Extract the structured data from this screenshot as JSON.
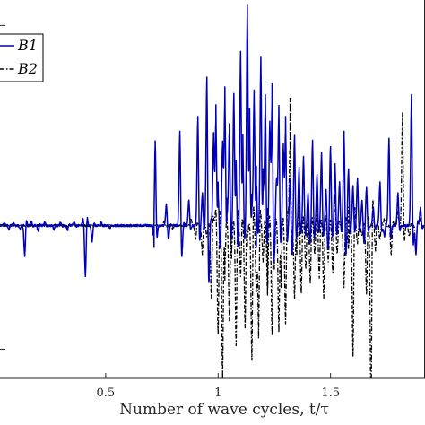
{
  "chart_data": {
    "type": "line",
    "xlabel": "Number of wave cycles, t/τ",
    "xticks": [
      0.5,
      1,
      1.5
    ],
    "xtick_labels": [
      "0.5",
      "1",
      "1.5"
    ],
    "xlim": [
      0.03,
      1.92
    ],
    "ylim": [
      -0.42,
      0.62
    ],
    "grid": false,
    "legend_position": "top-left",
    "series": [
      {
        "name": "B1",
        "color": "#0000bb",
        "style": "solid",
        "events": [
          [
            0.05,
            0.006
          ],
          [
            0.07,
            -0.012
          ],
          [
            0.09,
            0.007
          ],
          [
            0.12,
            -0.01
          ],
          [
            0.14,
            -0.085
          ],
          [
            0.17,
            0.012
          ],
          [
            0.2,
            -0.014
          ],
          [
            0.23,
            0.009
          ],
          [
            0.27,
            -0.011
          ],
          [
            0.3,
            0.008
          ],
          [
            0.33,
            -0.013
          ],
          [
            0.36,
            0.01
          ],
          [
            0.4,
            0.02
          ],
          [
            0.41,
            -0.14
          ],
          [
            0.44,
            -0.045
          ],
          [
            0.48,
            0.008
          ],
          [
            0.52,
            -0.006
          ],
          [
            0.72,
            0.24
          ],
          [
            0.715,
            -0.06
          ],
          [
            0.77,
            0.06
          ],
          [
            0.78,
            -0.03
          ],
          [
            0.83,
            0.26
          ],
          [
            0.84,
            -0.05
          ],
          [
            0.87,
            0.07
          ],
          [
            0.91,
            0.3
          ],
          [
            0.93,
            0.09
          ],
          [
            0.95,
            0.41
          ],
          [
            0.96,
            -0.04
          ],
          [
            0.98,
            0.25
          ],
          [
            0.99,
            0.33
          ],
          [
            1.0,
            0.12
          ],
          [
            1.02,
            0.22
          ],
          [
            1.03,
            0.38
          ],
          [
            1.04,
            0.07
          ],
          [
            1.05,
            0.28
          ],
          [
            1.07,
            0.36
          ],
          [
            1.08,
            0.18
          ],
          [
            1.1,
            0.47
          ],
          [
            1.11,
            0.25
          ],
          [
            1.13,
            0.6
          ],
          [
            1.14,
            0.32
          ],
          [
            1.15,
            0.08
          ],
          [
            1.16,
            0.37
          ],
          [
            1.17,
            0.22
          ],
          [
            1.19,
            0.46
          ],
          [
            1.2,
            0.15
          ],
          [
            1.21,
            0.36
          ],
          [
            1.23,
            0.28
          ],
          [
            1.24,
            0.39
          ],
          [
            1.26,
            0.12
          ],
          [
            1.27,
            0.33
          ],
          [
            1.29,
            0.22
          ],
          [
            1.3,
            0.3
          ],
          [
            1.32,
            0.13
          ],
          [
            1.34,
            0.24
          ],
          [
            1.36,
            0.16
          ],
          [
            1.38,
            0.19
          ],
          [
            1.4,
            0.09
          ],
          [
            1.42,
            0.23
          ],
          [
            1.44,
            0.14
          ],
          [
            1.46,
            0.2
          ],
          [
            1.48,
            0.1
          ],
          [
            1.5,
            0.21
          ],
          [
            1.52,
            0.17
          ],
          [
            1.54,
            0.12
          ],
          [
            1.56,
            0.26
          ],
          [
            1.58,
            0.15
          ],
          [
            1.6,
            0.11
          ],
          [
            1.62,
            0.13
          ],
          [
            1.64,
            0.07
          ],
          [
            1.66,
            0.1
          ],
          [
            1.69,
            0.05
          ],
          [
            1.72,
            0.12
          ],
          [
            1.76,
            0.24
          ],
          [
            1.8,
            0.09
          ],
          [
            1.86,
            0.36
          ],
          [
            1.88,
            -0.08
          ],
          [
            1.9,
            0.05
          ],
          [
            0.96,
            -0.07
          ],
          [
            1.01,
            -0.05
          ],
          [
            1.09,
            -0.04
          ],
          [
            1.17,
            -0.06
          ],
          [
            1.25,
            -0.05
          ],
          [
            1.33,
            -0.07
          ],
          [
            1.41,
            -0.04
          ],
          [
            1.49,
            -0.06
          ],
          [
            1.57,
            -0.05
          ],
          [
            1.65,
            -0.04
          ],
          [
            1.74,
            -0.03
          ]
        ]
      },
      {
        "name": "B2",
        "color": "#000000",
        "style": "dashdot",
        "events": [
          [
            0.76,
            0.012
          ],
          [
            0.8,
            -0.01
          ],
          [
            0.88,
            0.02
          ],
          [
            0.9,
            -0.04
          ],
          [
            0.93,
            -0.08
          ],
          [
            0.95,
            -0.03
          ],
          [
            0.97,
            -0.2
          ],
          [
            0.99,
            0.05
          ],
          [
            1.0,
            -0.3
          ],
          [
            1.02,
            -0.42
          ],
          [
            1.03,
            -0.15
          ],
          [
            1.05,
            -0.26
          ],
          [
            1.06,
            -0.09
          ],
          [
            1.08,
            -0.33
          ],
          [
            1.1,
            -0.14
          ],
          [
            1.12,
            -0.28
          ],
          [
            1.13,
            -0.06
          ],
          [
            1.15,
            -0.37
          ],
          [
            1.17,
            -0.18
          ],
          [
            1.18,
            -0.31
          ],
          [
            1.2,
            -0.1
          ],
          [
            1.22,
            -0.24
          ],
          [
            1.24,
            -0.3
          ],
          [
            1.25,
            -0.12
          ],
          [
            1.27,
            -0.29
          ],
          [
            1.28,
            -0.17
          ],
          [
            1.3,
            -0.27
          ],
          [
            1.32,
            -0.12
          ],
          [
            1.34,
            -0.2
          ],
          [
            1.35,
            -0.08
          ],
          [
            1.37,
            -0.18
          ],
          [
            1.39,
            -0.12
          ],
          [
            1.41,
            -0.16
          ],
          [
            1.43,
            -0.08
          ],
          [
            1.45,
            -0.14
          ],
          [
            1.47,
            -0.2
          ],
          [
            1.49,
            -0.1
          ],
          [
            1.51,
            -0.13
          ],
          [
            1.53,
            -0.07
          ],
          [
            1.56,
            -0.17
          ],
          [
            1.58,
            -0.11
          ],
          [
            1.6,
            -0.36
          ],
          [
            1.62,
            -0.05
          ],
          [
            1.64,
            -0.03
          ],
          [
            1.66,
            -0.19
          ],
          [
            1.68,
            -0.52
          ],
          [
            1.7,
            -0.07
          ],
          [
            1.72,
            -0.04
          ],
          [
            1.74,
            0.02
          ],
          [
            1.77,
            -0.08
          ],
          [
            1.8,
            0.04
          ],
          [
            1.82,
            0.31
          ],
          [
            1.85,
            -0.03
          ],
          [
            1.88,
            -0.06
          ],
          [
            1.9,
            0.02
          ],
          [
            1.32,
            0.35
          ],
          [
            1.22,
            0.05
          ],
          [
            1.36,
            0.06
          ],
          [
            1.44,
            0.04
          ],
          [
            1.52,
            0.07
          ],
          [
            1.58,
            0.05
          ]
        ]
      }
    ]
  }
}
